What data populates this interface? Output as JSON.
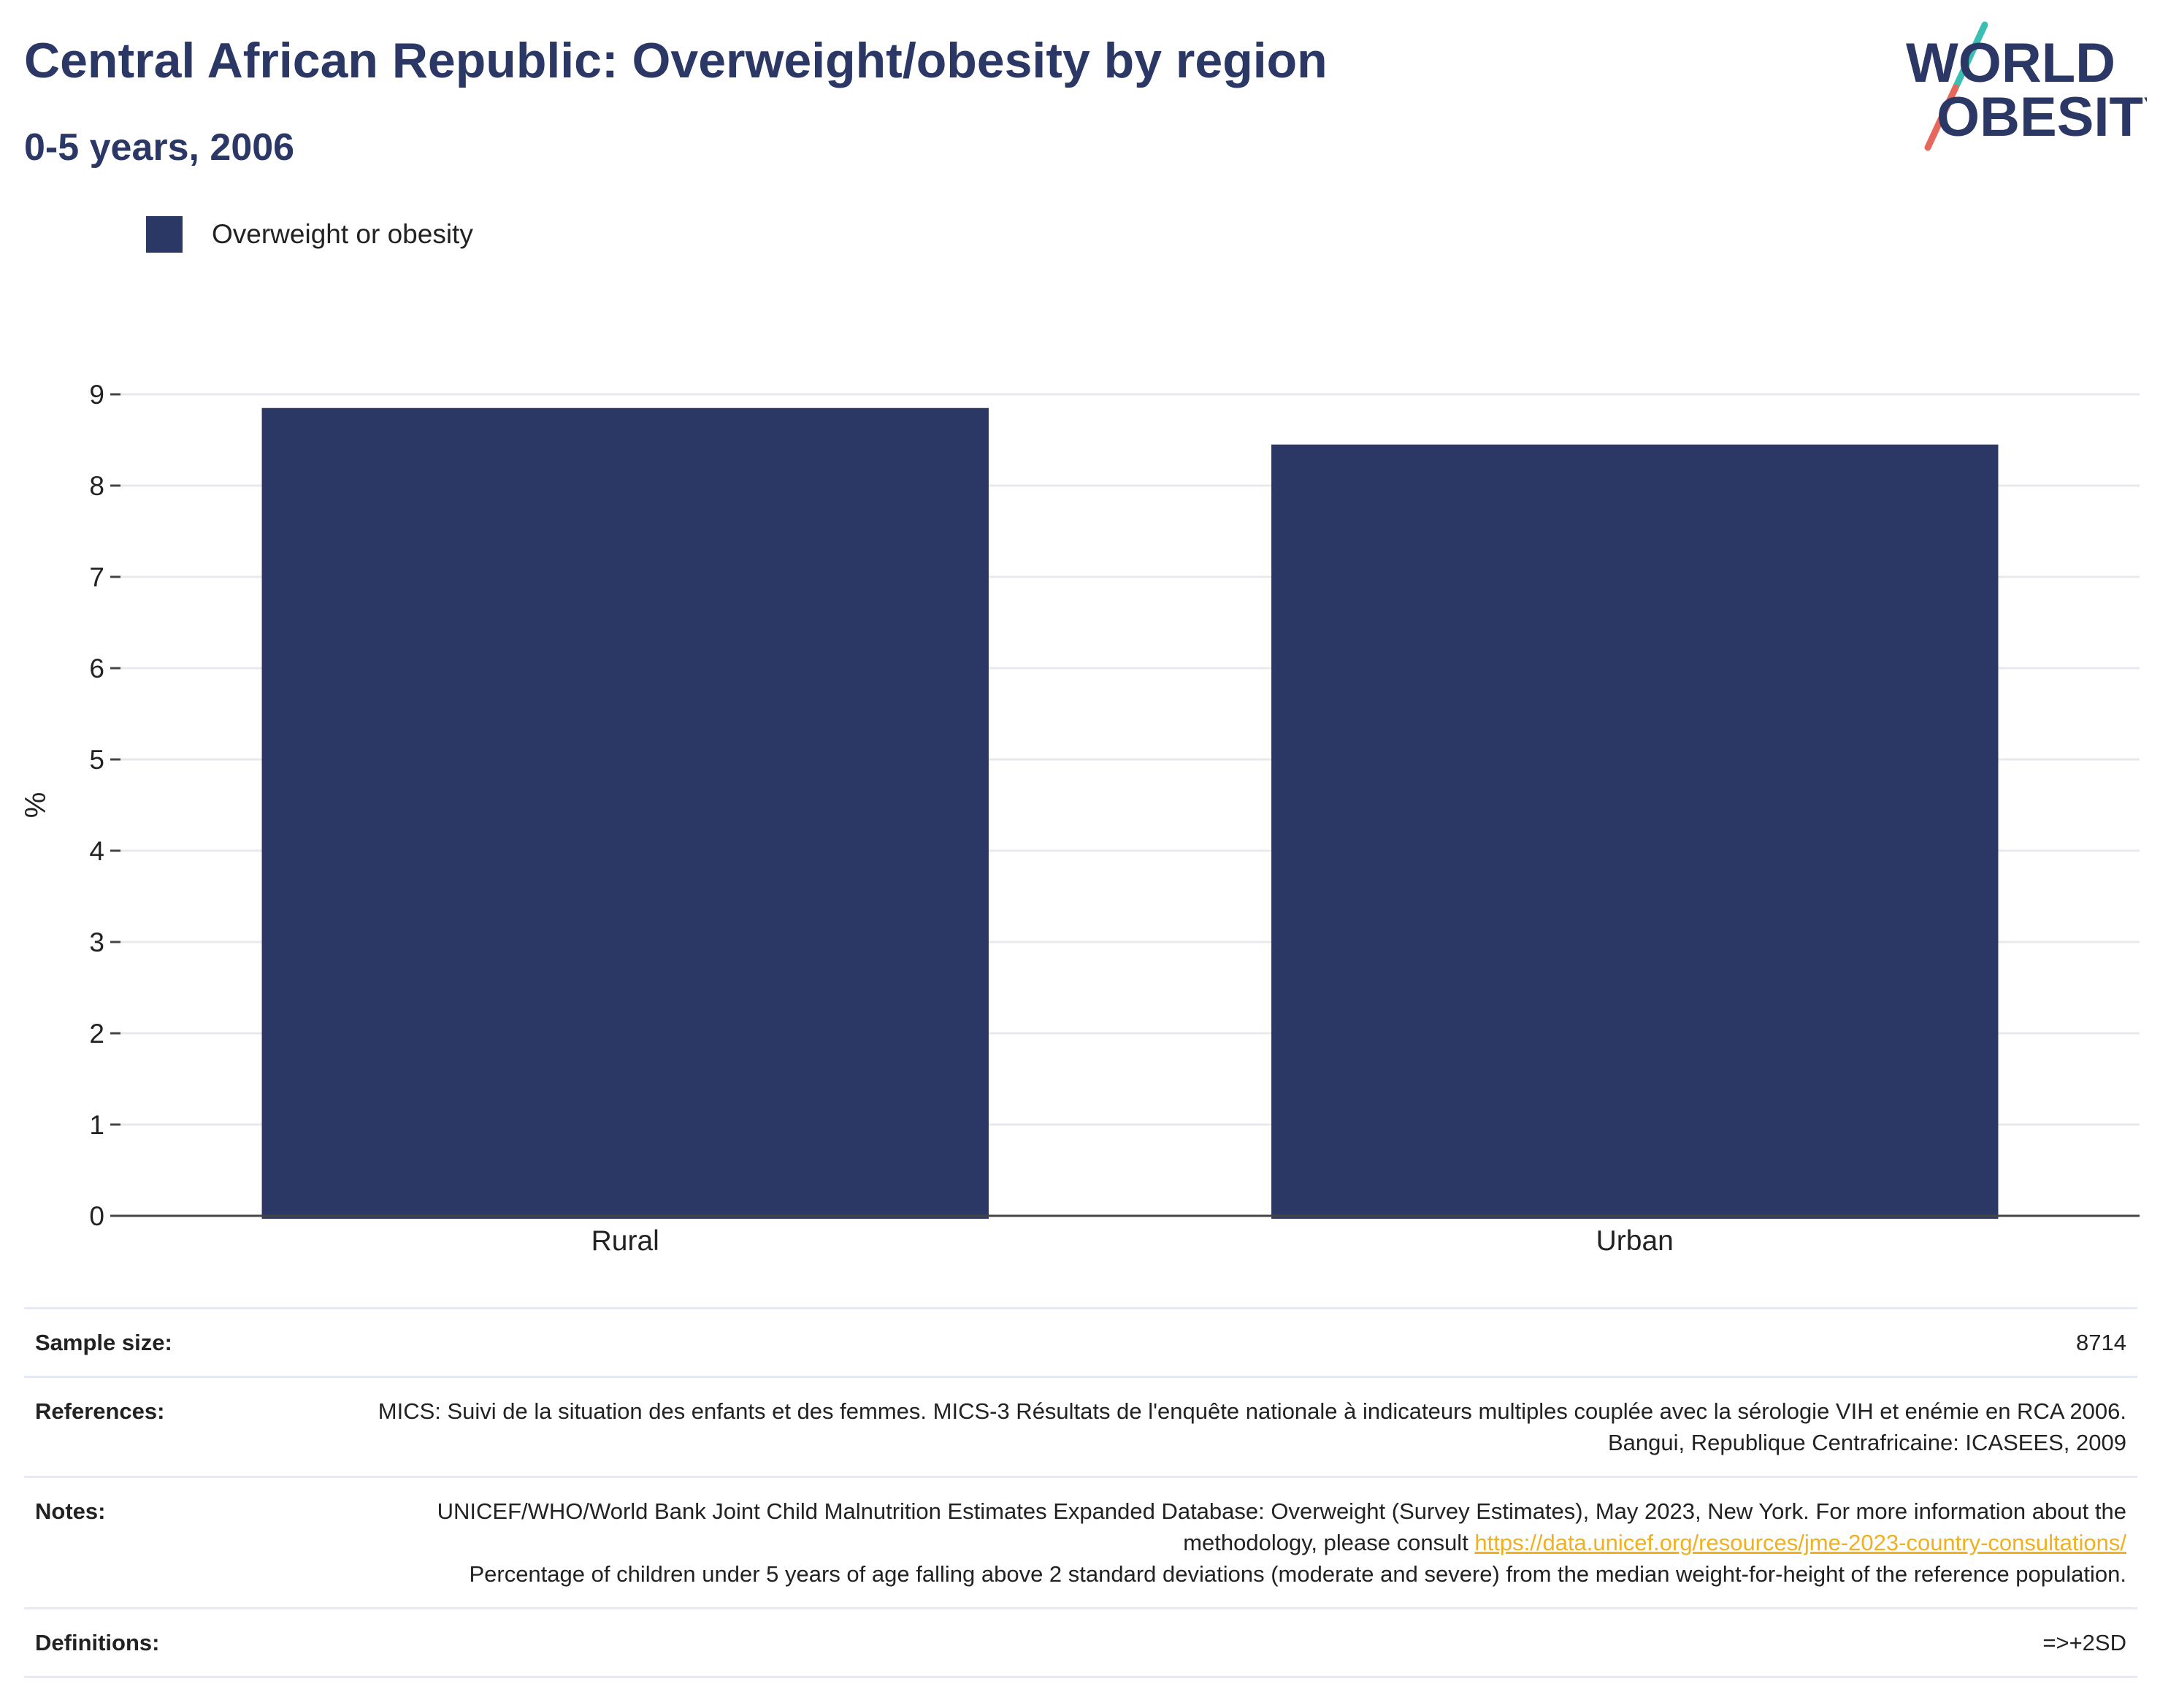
{
  "header": {
    "title": "Central African Republic: Overweight/obesity by region",
    "subtitle": "0-5 years, 2006"
  },
  "logo": {
    "line1": "WORLD",
    "line2": "OBESITY",
    "colors": {
      "text": "#2b3764",
      "slash_top": "#3bbfb3",
      "slash_bottom": "#e8675c"
    }
  },
  "legend": {
    "items": [
      {
        "label": "Overweight or obesity",
        "color": "#2b3764"
      }
    ]
  },
  "chart_data": {
    "type": "bar",
    "title": "Central African Republic: Overweight/obesity by region",
    "subtitle": "0-5 years, 2006",
    "categories": [
      "Rural",
      "Urban"
    ],
    "series": [
      {
        "name": "Overweight or obesity",
        "values": [
          8.85,
          8.45
        ],
        "color": "#2b3764"
      }
    ],
    "xlabel": "",
    "ylabel": "%",
    "ylim": [
      0,
      9
    ],
    "yticks": [
      0,
      1,
      2,
      3,
      4,
      5,
      6,
      7,
      8,
      9
    ],
    "grid": true,
    "legend_position": "top-left"
  },
  "info": {
    "sample_size_label": "Sample size:",
    "sample_size_value": "8714",
    "references_label": "References:",
    "references_value": "MICS: Suivi de la situation des enfants et des femmes. MICS-3 Résultats de l'enquête nationale à indicateurs multiples couplée avec la sérologie VIH et enémie en RCA 2006. Bangui, Republique Centrafricaine: ICASEES, 2009",
    "notes_label": "Notes:",
    "notes_text_1": "UNICEF/WHO/World Bank Joint Child Malnutrition Estimates Expanded Database: Overweight (Survey Estimates), May 2023, New York. For more information about the methodology, please consult ",
    "notes_link": "https://data.unicef.org/resources/jme-2023-country-consultations/",
    "notes_text_2": "Percentage of children under 5 years of age falling above 2 standard deviations (moderate and severe) from the median weight-for-height of the reference population.",
    "definitions_label": "Definitions:",
    "definitions_value": "=>+2SD"
  }
}
